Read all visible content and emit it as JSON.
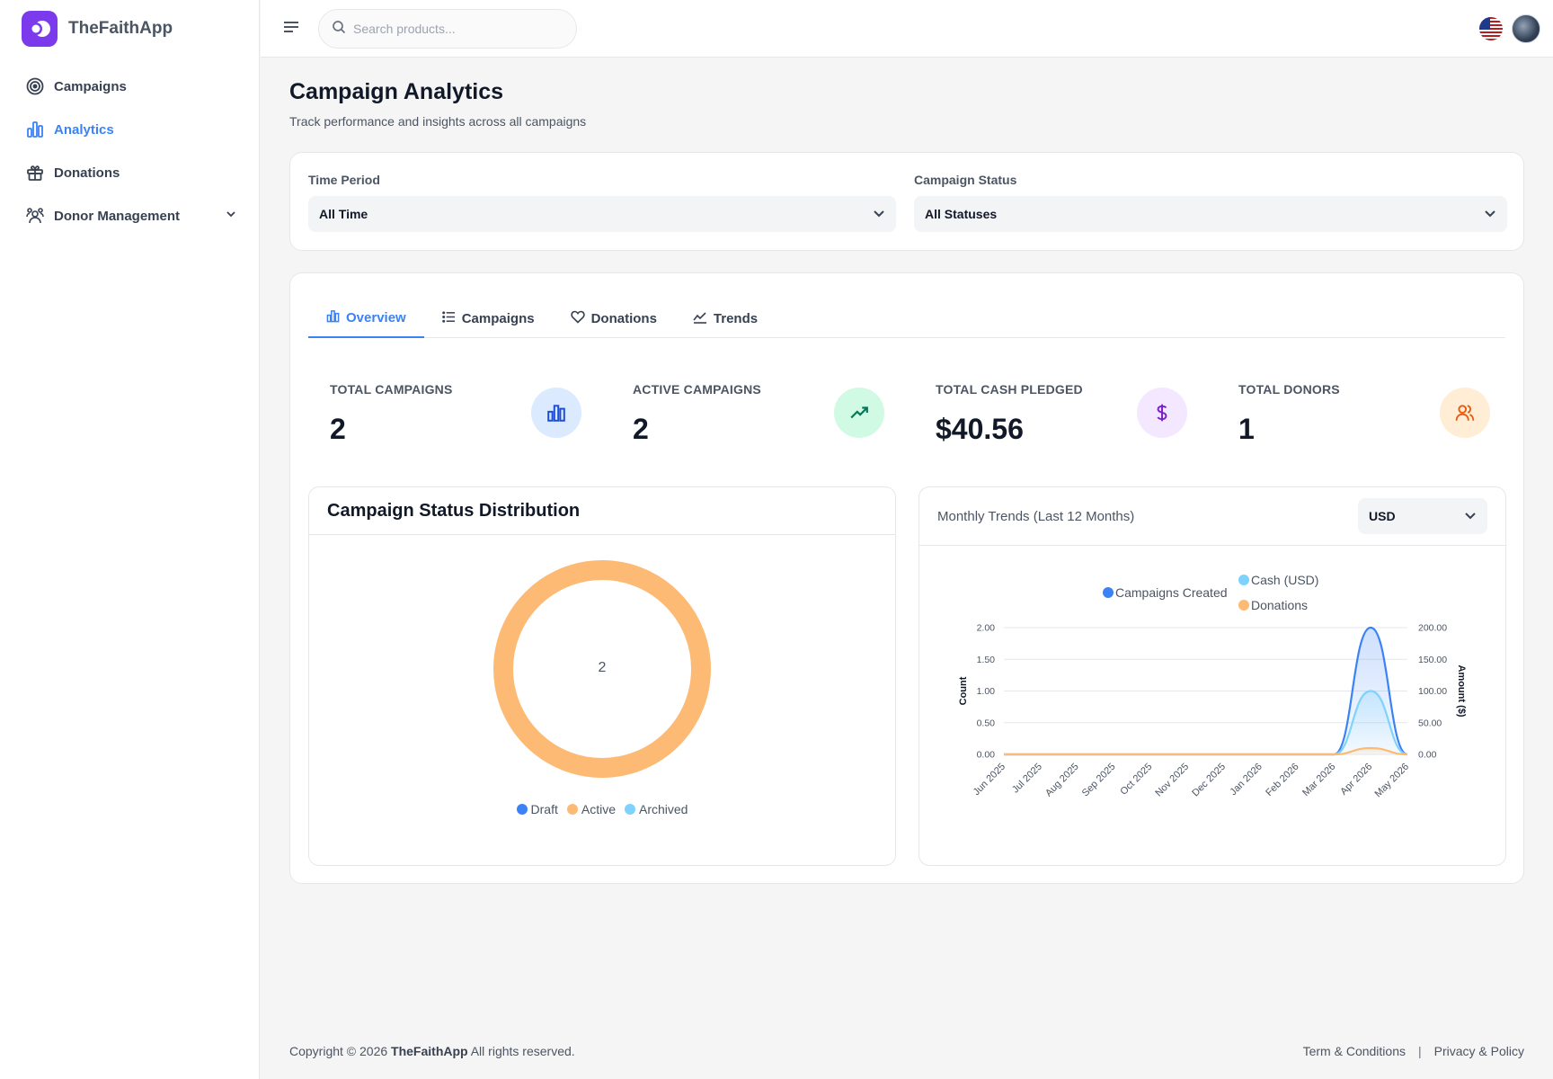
{
  "app": {
    "name": "TheFaithApp"
  },
  "sidebar": {
    "items": [
      {
        "label": "Campaigns",
        "icon": "target-icon"
      },
      {
        "label": "Analytics",
        "icon": "bar-chart-icon",
        "active": true
      },
      {
        "label": "Donations",
        "icon": "gift-icon"
      },
      {
        "label": "Donor Management",
        "icon": "users-icon",
        "expandable": true
      }
    ]
  },
  "topbar": {
    "search_placeholder": "Search products..."
  },
  "page": {
    "title": "Campaign Analytics",
    "subtitle": "Track performance and insights across all campaigns"
  },
  "filters": {
    "time_period": {
      "label": "Time Period",
      "value": "All Time"
    },
    "campaign_status": {
      "label": "Campaign Status",
      "value": "All Statuses"
    }
  },
  "tabs": [
    {
      "label": "Overview",
      "icon": "bar-chart-icon",
      "active": true
    },
    {
      "label": "Campaigns",
      "icon": "list-icon"
    },
    {
      "label": "Donations",
      "icon": "heart-icon"
    },
    {
      "label": "Trends",
      "icon": "trend-icon"
    }
  ],
  "stats": [
    {
      "label": "TOTAL CAMPAIGNS",
      "value": "2",
      "icon": "bar-chart-icon",
      "bg": "#dbeafe",
      "color": "#1d4ed8"
    },
    {
      "label": "ACTIVE CAMPAIGNS",
      "value": "2",
      "icon": "trending-up-icon",
      "bg": "#d1fae5",
      "color": "#047857"
    },
    {
      "label": "TOTAL CASH PLEDGED",
      "value": "$40.56",
      "icon": "dollar-icon",
      "bg": "#f3e8ff",
      "color": "#7e22ce"
    },
    {
      "label": "TOTAL DONORS",
      "value": "1",
      "icon": "users-icon",
      "bg": "#ffedd5",
      "color": "#ea580c"
    }
  ],
  "status_panel": {
    "title": "Campaign Status Distribution"
  },
  "trends_panel": {
    "title": "Monthly Trends (Last 12 Months)",
    "currency": "USD"
  },
  "chart_data": [
    {
      "type": "pie",
      "title": "Campaign Status Distribution",
      "center_label": "2",
      "categories": [
        "Draft",
        "Active",
        "Archived"
      ],
      "values": [
        0,
        2,
        0
      ],
      "colors": [
        "#3b82f6",
        "#fdba74",
        "#7dd3fc"
      ],
      "legend": "bottom"
    },
    {
      "type": "area",
      "title": "Monthly Trends (Last 12 Months)",
      "categories": [
        "Jun 2025",
        "Jul 2025",
        "Aug 2025",
        "Sep 2025",
        "Oct 2025",
        "Nov 2025",
        "Dec 2025",
        "Jan 2026",
        "Feb 2026",
        "Mar 2026",
        "Apr 2026",
        "May 2026"
      ],
      "series": [
        {
          "name": "Campaigns Created",
          "axis": "left",
          "color": "#3b82f6",
          "values": [
            0,
            0,
            0,
            0,
            0,
            0,
            0,
            0,
            0,
            0,
            2,
            0
          ]
        },
        {
          "name": "Cash (USD)",
          "axis": "right",
          "color": "#7dd3fc",
          "values": [
            0,
            0,
            0,
            0,
            0,
            0,
            0,
            0,
            0,
            0,
            100,
            0
          ]
        },
        {
          "name": "Donations",
          "axis": "left",
          "color": "#fdba74",
          "values": [
            0,
            0,
            0,
            0,
            0,
            0,
            0,
            0,
            0,
            0,
            0.1,
            0
          ]
        }
      ],
      "ylabel": "Count",
      "ylabel_right": "Amount ($)",
      "ylim": [
        0,
        2
      ],
      "ylim_right": [
        0,
        200
      ],
      "yticks": [
        "0.00",
        "0.50",
        "1.00",
        "1.50",
        "2.00"
      ],
      "yticks_right": [
        "0.00",
        "50.00",
        "100.00",
        "150.00",
        "200.00"
      ],
      "grid": true,
      "legend": "top"
    }
  ],
  "footer": {
    "copyright_prefix": "Copyright © 2026",
    "brand": "TheFaithApp",
    "copyright_suffix": "All rights reserved.",
    "terms": "Term & Conditions",
    "separator": "|",
    "privacy": "Privacy & Policy"
  }
}
